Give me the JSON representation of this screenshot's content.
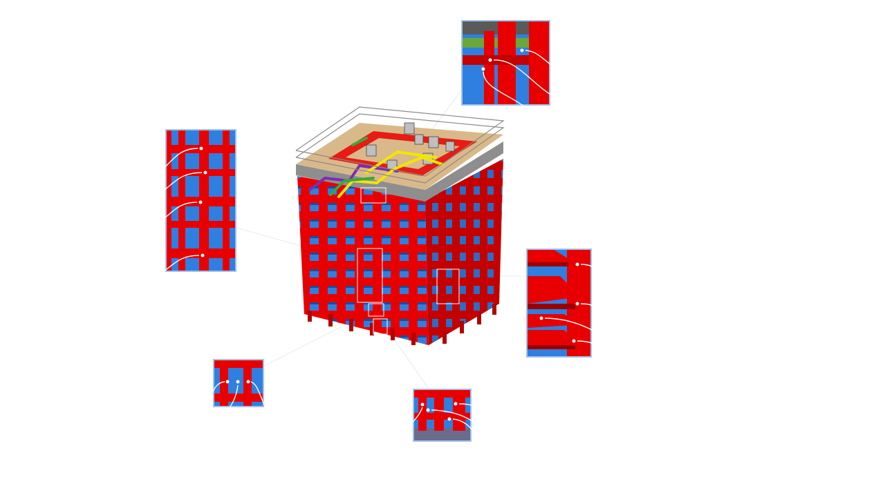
{
  "figure": {
    "subject": "isometric-steel-frame-module",
    "colors": {
      "steel": "#e80000",
      "steel_dark": "#9b0000",
      "glazing": "#2f7fe0",
      "deck": "#d9b98a",
      "railing": "#8a8a8a",
      "pipe_yellow": "#f2e600",
      "pipe_purple": "#7a2fb0",
      "pipe_green": "#3aa83a",
      "inset_border": "#9fc3ec"
    },
    "insets": [
      {
        "id": "top",
        "callouts": 3
      },
      {
        "id": "left",
        "callouts": 4
      },
      {
        "id": "right",
        "callouts": 4
      },
      {
        "id": "bottom-left",
        "callouts": 3
      },
      {
        "id": "bottom-center",
        "callouts": 4
      }
    ],
    "labels": []
  }
}
